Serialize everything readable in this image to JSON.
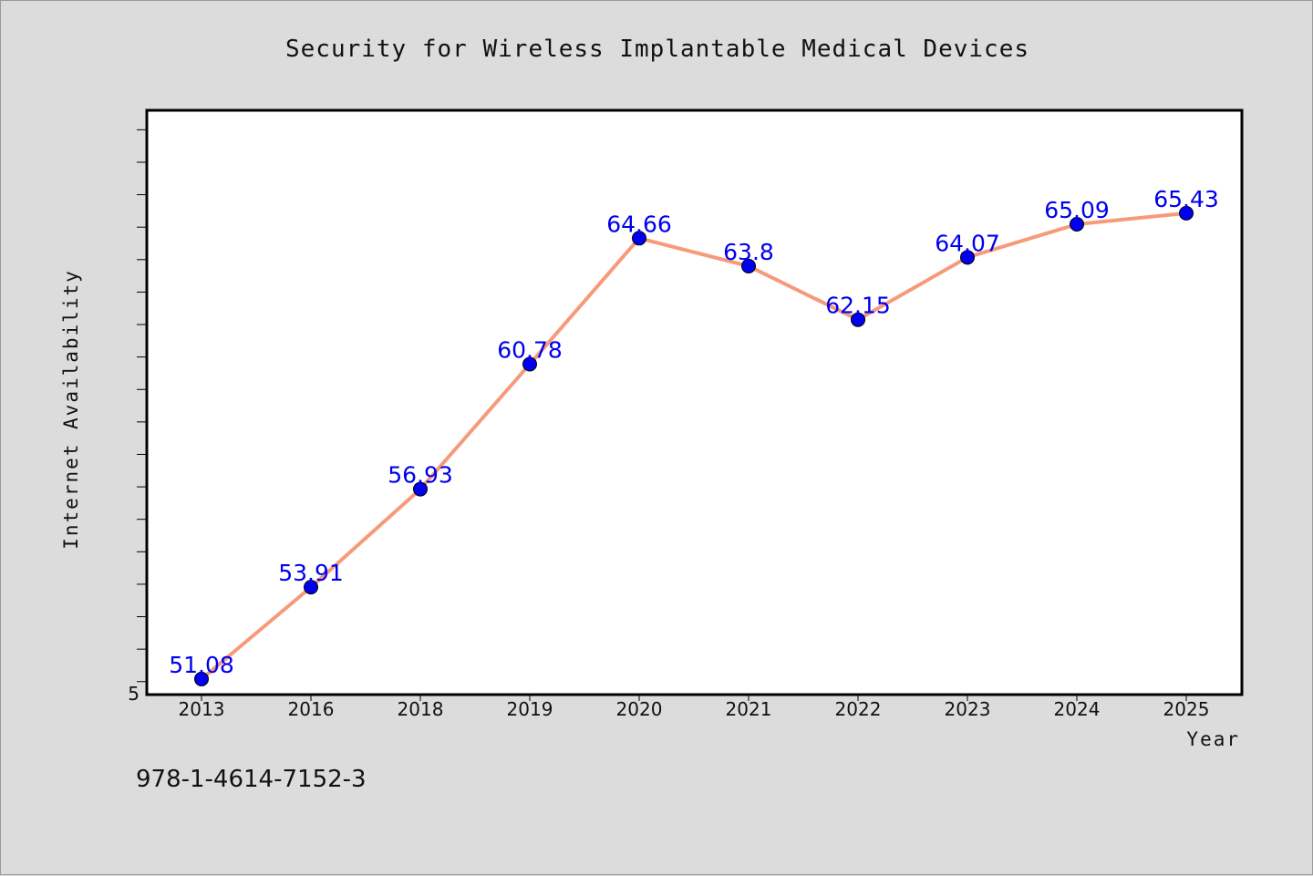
{
  "footer_text": "978-1-4614-7152-3",
  "colors": {
    "background": "#dcdcdc",
    "plot_background": "#ffffff",
    "line": "#f79a7a",
    "marker": "#0000ee",
    "data_label": "#0000ee"
  },
  "chart_data": {
    "type": "line",
    "title": "Security for Wireless Implantable Medical Devices",
    "xlabel": "Year",
    "ylabel": "Internet Availability",
    "categories": [
      "2013",
      "2016",
      "2018",
      "2019",
      "2020",
      "2021",
      "2022",
      "2023",
      "2024",
      "2025"
    ],
    "series": [
      {
        "values": [
          51.08,
          53.91,
          56.93,
          60.78,
          64.66,
          63.8,
          62.15,
          64.07,
          65.09,
          65.43
        ],
        "color": "#f79a7a",
        "marker_color": "#0000ee"
      }
    ],
    "data_labels": [
      "51.08",
      "53.91",
      "56.93",
      "60.78",
      "64.66",
      "63.8",
      "62.15",
      "64.07",
      "65.09",
      "65.43"
    ],
    "ylim": [
      50.6,
      68.6
    ],
    "y_tick_step": 1,
    "y_tick_labels": [
      "5"
    ],
    "grid": false,
    "legend": "none"
  }
}
